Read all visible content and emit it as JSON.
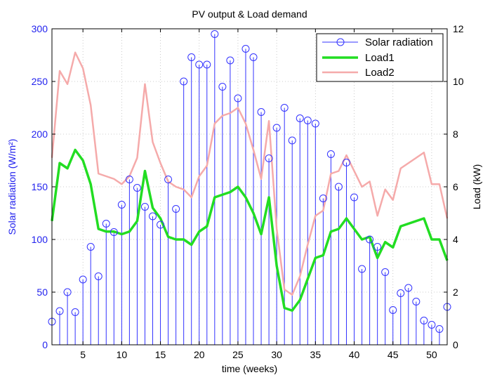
{
  "chart_data": {
    "type": "line",
    "title": "PV output & Load demand",
    "xlabel": "time (weeks)",
    "ylabel_left": "Solar radiation (W/m²)",
    "ylabel_right": "Load (kW)",
    "xlim": [
      1,
      52
    ],
    "ylim_left": [
      0,
      300
    ],
    "ylim_right": [
      0,
      12
    ],
    "x_ticks": [
      5,
      10,
      15,
      20,
      25,
      30,
      35,
      40,
      45,
      50
    ],
    "y_ticks_left": [
      0,
      50,
      100,
      150,
      200,
      250,
      300
    ],
    "y_ticks_right": [
      0,
      2,
      4,
      6,
      8,
      10,
      12
    ],
    "grid": true,
    "legend_position": "top-right",
    "x": [
      1,
      2,
      3,
      4,
      5,
      6,
      7,
      8,
      9,
      10,
      11,
      12,
      13,
      14,
      15,
      16,
      17,
      18,
      19,
      20,
      21,
      22,
      23,
      24,
      25,
      26,
      27,
      28,
      29,
      30,
      31,
      32,
      33,
      34,
      35,
      36,
      37,
      38,
      39,
      40,
      41,
      42,
      43,
      44,
      45,
      46,
      47,
      48,
      49,
      50,
      51,
      52
    ],
    "series": [
      {
        "name": "Solar radiation",
        "axis": "left",
        "style": "stem",
        "color": "#3333ff",
        "values": [
          22,
          32,
          50,
          31,
          62,
          93,
          65,
          115,
          107,
          133,
          157,
          149,
          131,
          122,
          114,
          157,
          129,
          250,
          273,
          266,
          266,
          295,
          245,
          270,
          234,
          281,
          273,
          221,
          177,
          206,
          225,
          194,
          215,
          213,
          210,
          139,
          181,
          150,
          173,
          140,
          72,
          100,
          93,
          69,
          33,
          49,
          54,
          41,
          23,
          19,
          15,
          36
        ]
      },
      {
        "name": "Load1",
        "axis": "right",
        "style": "line",
        "color": "#22dd22",
        "values": [
          4.7,
          6.9,
          6.7,
          7.4,
          7.0,
          6.1,
          4.4,
          4.3,
          4.3,
          4.2,
          4.3,
          4.7,
          6.6,
          5.2,
          4.8,
          4.1,
          4.0,
          4.0,
          3.8,
          4.3,
          4.5,
          5.6,
          5.7,
          5.8,
          6.0,
          5.6,
          5.0,
          4.2,
          5.6,
          3.0,
          1.4,
          1.3,
          1.7,
          2.5,
          3.3,
          3.4,
          4.3,
          4.4,
          4.8,
          4.4,
          4.0,
          4.1,
          3.3,
          3.9,
          3.7,
          4.5,
          4.6,
          4.7,
          4.8,
          4.0,
          4.0,
          3.2
        ]
      },
      {
        "name": "Load2",
        "axis": "right",
        "style": "line",
        "color": "#f5aaaa",
        "values": [
          7.1,
          10.4,
          9.9,
          11.1,
          10.5,
          9.1,
          6.5,
          6.4,
          6.3,
          6.1,
          6.4,
          7.1,
          9.9,
          7.7,
          6.9,
          6.2,
          6.0,
          5.9,
          5.6,
          6.4,
          6.8,
          8.4,
          8.7,
          8.8,
          9.0,
          8.4,
          7.4,
          6.3,
          8.5,
          4.4,
          2.1,
          1.9,
          2.6,
          3.8,
          4.9,
          5.1,
          6.5,
          6.6,
          7.2,
          6.6,
          6.0,
          6.2,
          4.9,
          5.9,
          5.5,
          6.7,
          6.9,
          7.1,
          7.3,
          6.1,
          6.1,
          4.8
        ]
      }
    ]
  }
}
